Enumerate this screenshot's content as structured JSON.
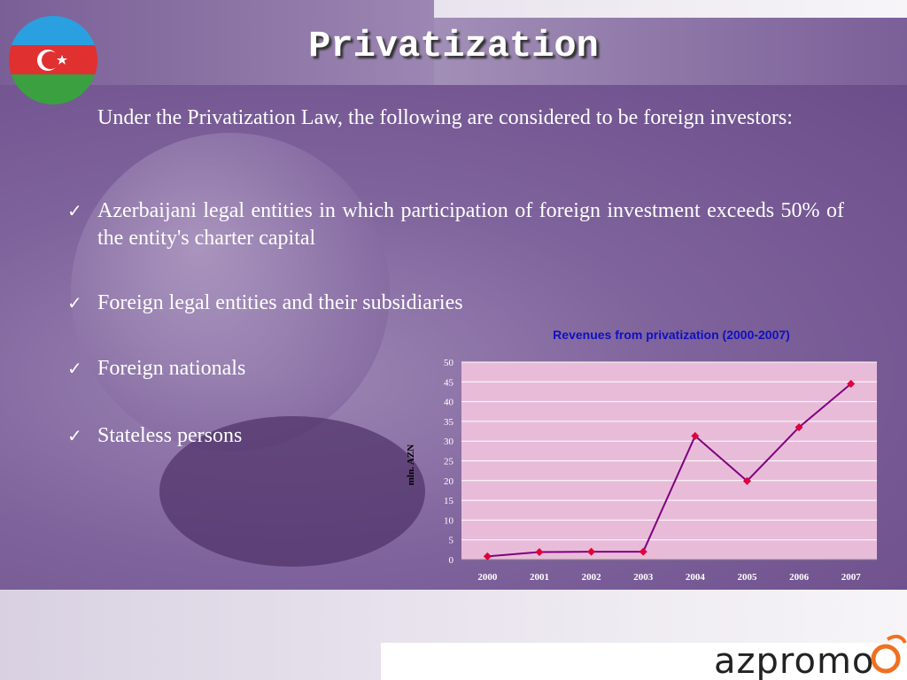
{
  "header": {
    "title": "Privatization"
  },
  "body": {
    "intro": "Under the Privatization Law, the following are considered to be foreign investors:",
    "bullets": [
      "Azerbaijani legal entities in which participation of foreign investment exceeds 50% of the entity's charter capital",
      "Foreign legal entities and their subsidiaries",
      "Foreign nationals",
      "Stateless persons"
    ]
  },
  "chart_data": {
    "type": "line",
    "title": "Revenues from privatization (2000-2007)",
    "y_label": "mln. AZN",
    "categories": [
      "2000",
      "2001",
      "2002",
      "2003",
      "2004",
      "2005",
      "2006",
      "2007"
    ],
    "values": [
      0.8,
      1.9,
      2.0,
      2.0,
      31.3,
      19.9,
      33.5,
      44.5
    ],
    "color": "#800080",
    "marker_color": "#e0003a",
    "ylim": [
      0,
      50
    ],
    "yticks": [
      0,
      5,
      10,
      15,
      20,
      25,
      30,
      35,
      40,
      45,
      50
    ],
    "grid": true
  },
  "logo": {
    "text": "azpromo"
  }
}
